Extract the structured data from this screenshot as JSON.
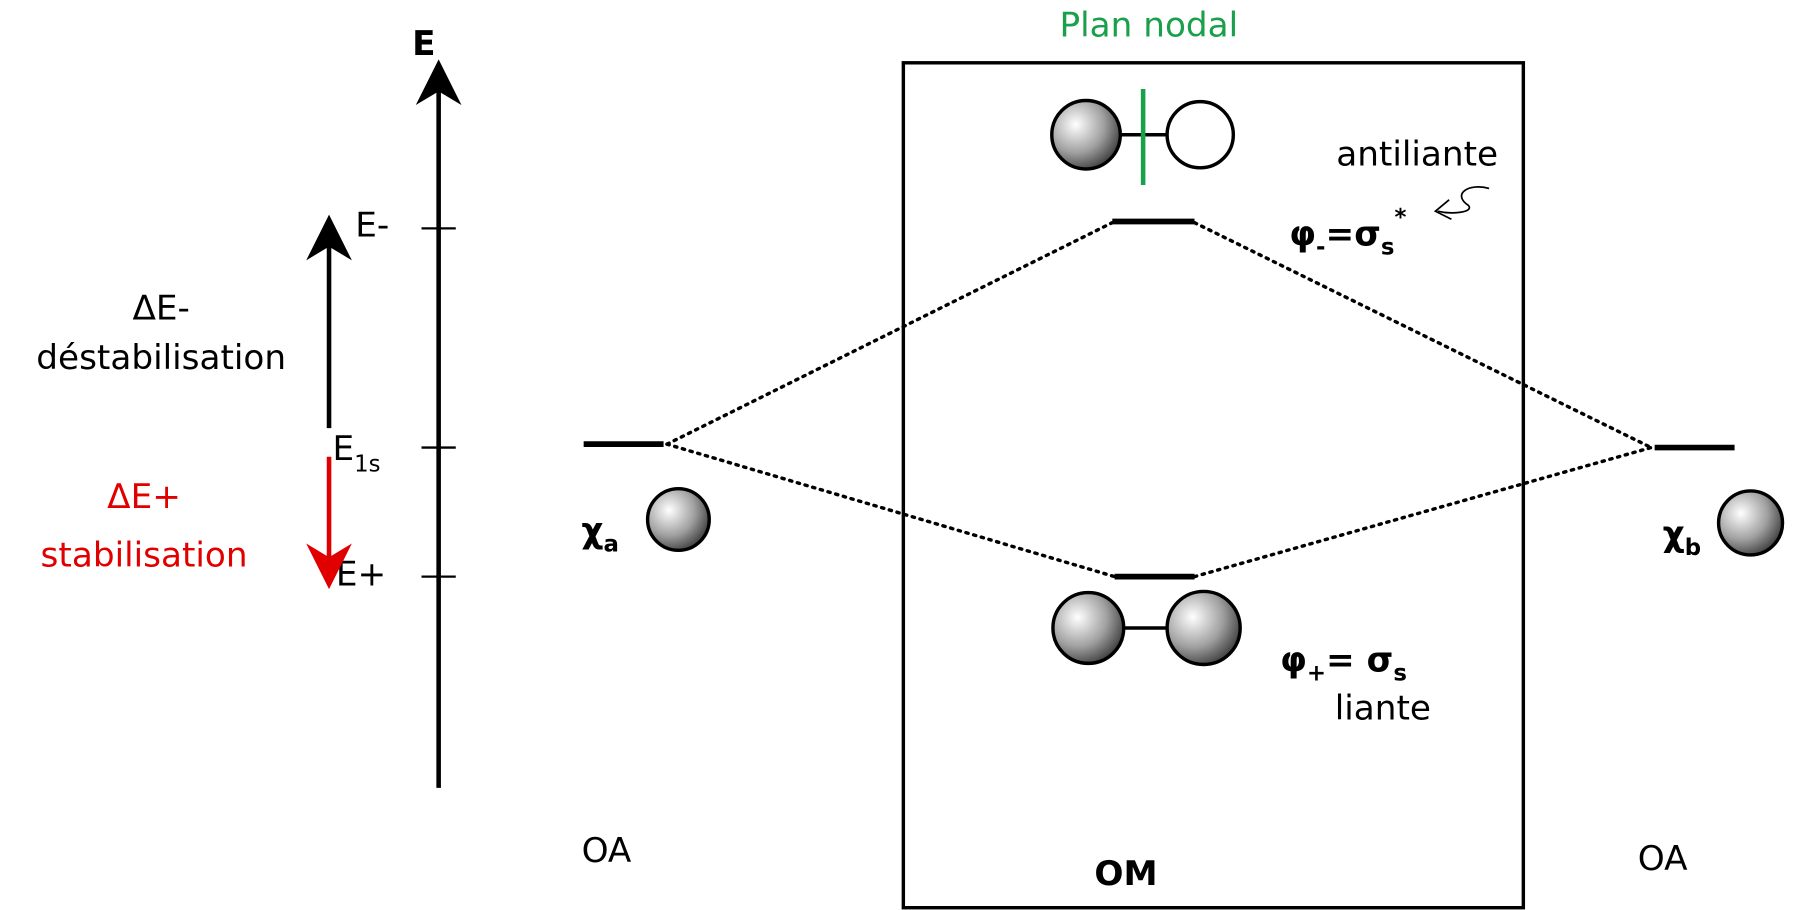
{
  "axis_label": "E",
  "nodal_plane": "Plan nodal",
  "levels": {
    "e_minus": "E-",
    "e_1s": [
      "E",
      "1s"
    ],
    "e_plus": "E+"
  },
  "delta_minus": {
    "symbol": "ΔE-",
    "text": "déstabilisation"
  },
  "delta_plus": {
    "symbol": "ΔE+",
    "text": "stabilisation"
  },
  "atomic_orbitals": {
    "chi_a": [
      "χ",
      "a"
    ],
    "chi_b": [
      "χ",
      "b"
    ],
    "left_label": "OA",
    "right_label": "OA"
  },
  "molecular_orbitals": {
    "label": "OM",
    "antibonding": {
      "name": "antiliante",
      "formula": [
        "φ",
        "-",
        "=σ",
        "s",
        "*"
      ]
    },
    "bonding": {
      "name": "liante",
      "formula": [
        "φ",
        "+",
        "= σ",
        "s"
      ]
    }
  }
}
